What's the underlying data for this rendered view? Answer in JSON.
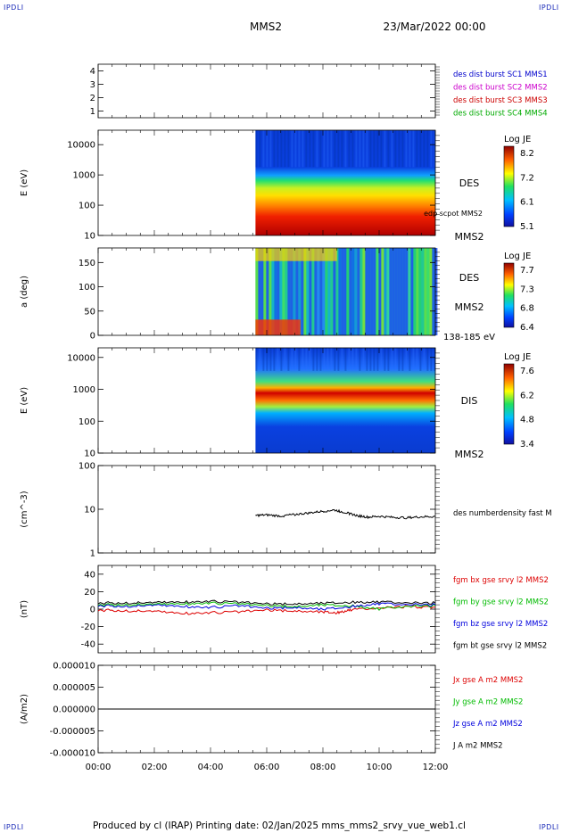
{
  "header": {
    "corner_tl": "IPDLI",
    "corner_tr": "IPDLI",
    "corner_bl": "IPDLI",
    "corner_br": "IPDLI",
    "spacecraft": "MMS2",
    "datetime": "23/Mar/2022 00:00"
  },
  "footer": {
    "credit": "Produced by cl (IRAP)   Printing date: 02/Jan/2025   mms_mms2_srvy_vue_web1.cl"
  },
  "colors": {
    "mms1": "#0000cc",
    "mms2": "#cc00cc",
    "mms3": "#cc0000",
    "mms4": "#00aa00",
    "bx": "#dd0000",
    "by": "#00bb00",
    "bz": "#0000dd",
    "bt": "#000000"
  },
  "chart_data": [
    {
      "type": "line",
      "panel": "burst-availability",
      "ylim": [
        0.5,
        4.5
      ],
      "yticks": [
        "1",
        "2",
        "3",
        "4"
      ],
      "legend": [
        {
          "label": "des dist burst SC1 MMS1",
          "color_key": "mms1"
        },
        {
          "label": "des dist burst SC2 MMS2",
          "color_key": "mms2"
        },
        {
          "label": "des dist burst SC3 MMS3",
          "color_key": "mms3"
        },
        {
          "label": "des dist burst SC4 MMS4",
          "color_key": "mms4"
        }
      ],
      "series": []
    },
    {
      "type": "heatmap",
      "panel": "des-energy",
      "ylabel": "E (eV)",
      "yscale": "log",
      "ylim": [
        10,
        30000
      ],
      "yticks": [
        "10",
        "100",
        "1000",
        "10000"
      ],
      "data_start_hour": 5.6,
      "right_labels": [
        "DES",
        "edp scpot MMS2",
        "MMS2"
      ],
      "colorbar": {
        "title": "Log JE",
        "ticks": [
          "8.2",
          "7.2",
          "6.1",
          "5.1"
        ]
      }
    },
    {
      "type": "heatmap",
      "panel": "des-pitch-angle",
      "ylabel": "a (deg)",
      "ylim": [
        0,
        180
      ],
      "yticks": [
        "0",
        "50",
        "100",
        "150"
      ],
      "data_start_hour": 5.6,
      "right_labels": [
        "DES",
        "MMS2",
        "138-185 eV"
      ],
      "colorbar": {
        "title": "Log JE",
        "ticks": [
          "7.7",
          "7.3",
          "6.8",
          "6.4"
        ]
      }
    },
    {
      "type": "heatmap",
      "panel": "dis-energy",
      "ylabel": "E (eV)",
      "yscale": "log",
      "ylim": [
        10,
        20000
      ],
      "yticks": [
        "10",
        "100",
        "1000",
        "10000"
      ],
      "data_start_hour": 5.6,
      "right_labels": [
        "DIS",
        "MMS2"
      ],
      "colorbar": {
        "title": "Log JE",
        "ticks": [
          "7.6",
          "6.2",
          "4.8",
          "3.4"
        ]
      }
    },
    {
      "type": "line",
      "panel": "density",
      "ylabel": "(cm^-3)",
      "yscale": "log",
      "ylim": [
        1,
        100
      ],
      "yticks": [
        "1",
        "10",
        "100"
      ],
      "legend": [
        {
          "label": "des numberdensity fast M",
          "color_key": "bt"
        }
      ],
      "series": [
        {
          "name": "des numberdensity fast M",
          "color_key": "bt",
          "x": [
            5.6,
            6.0,
            6.5,
            7.0,
            7.5,
            8.0,
            8.4,
            8.8,
            9.2,
            9.6,
            10.0,
            10.5,
            11.0,
            11.5,
            12.0
          ],
          "y": [
            7.2,
            7.4,
            7.0,
            7.6,
            8.2,
            9.0,
            9.6,
            8.4,
            7.2,
            6.6,
            6.9,
            6.5,
            6.4,
            6.7,
            6.8
          ]
        }
      ]
    },
    {
      "type": "line",
      "panel": "magnetic-field",
      "ylabel": "(nT)",
      "ylim": [
        -50,
        50
      ],
      "yticks": [
        "-40",
        "-20",
        "0",
        "20",
        "40"
      ],
      "legend": [
        {
          "label": "fgm bx gse srvy l2 MMS2",
          "color_key": "bx"
        },
        {
          "label": "fgm by gse srvy l2 MMS2",
          "color_key": "by"
        },
        {
          "label": "fgm bz gse srvy l2 MMS2",
          "color_key": "bz"
        },
        {
          "label": "fgm bt gse srvy l2 MMS2",
          "color_key": "bt"
        }
      ],
      "series": [
        {
          "name": "fgm bx gse srvy l2 MMS2",
          "color_key": "bx",
          "x": [
            0,
            1,
            2,
            3,
            4,
            5,
            6,
            7,
            8,
            8.5,
            9,
            10,
            11,
            12
          ],
          "y": [
            -1,
            -2,
            -2,
            -5,
            -4,
            -3,
            -1,
            -2,
            -3,
            -4,
            -1,
            1,
            3,
            2
          ]
        },
        {
          "name": "fgm by gse srvy l2 MMS2",
          "color_key": "by",
          "x": [
            0,
            1,
            2,
            3,
            4,
            5,
            6,
            7,
            8,
            9,
            10,
            11,
            12
          ],
          "y": [
            5,
            5,
            6,
            6,
            7,
            6,
            4,
            3,
            5,
            4,
            0,
            3,
            4
          ]
        },
        {
          "name": "fgm bz gse srvy l2 MMS2",
          "color_key": "bz",
          "x": [
            0,
            1,
            2,
            3,
            4,
            5,
            6,
            7,
            8,
            9,
            10,
            11,
            12
          ],
          "y": [
            4,
            3,
            5,
            3,
            2,
            4,
            1,
            2,
            0,
            3,
            6,
            5,
            5
          ]
        },
        {
          "name": "fgm bt gse srvy l2 MMS2",
          "color_key": "bt",
          "x": [
            0,
            1,
            2,
            3,
            4,
            5,
            6,
            7,
            8,
            9,
            10,
            11,
            12
          ],
          "y": [
            7,
            7,
            8,
            8,
            9,
            8,
            6,
            6,
            7,
            8,
            8,
            7,
            7
          ]
        }
      ]
    },
    {
      "type": "line",
      "panel": "current-density",
      "ylabel": "(A/m2)",
      "ylim": [
        -1e-05,
        1e-05
      ],
      "yticks": [
        "-0.000010",
        "-0.000005",
        "0.000000",
        "0.000005",
        "0.000010"
      ],
      "xlim": [
        0,
        12
      ],
      "xticks": [
        "00:00",
        "02:00",
        "04:00",
        "06:00",
        "08:00",
        "10:00",
        "12:00"
      ],
      "legend": [
        {
          "label": "Jx gse A m2 MMS2",
          "color_key": "bx"
        },
        {
          "label": "Jy gse A m2 MMS2",
          "color_key": "by"
        },
        {
          "label": "Jz gse A m2 MMS2",
          "color_key": "bz"
        },
        {
          "label": "J A m2 MMS2",
          "color_key": "bt"
        }
      ],
      "series": [
        {
          "name": "J A m2 MMS2",
          "color_key": "bt",
          "x": [
            0,
            12
          ],
          "y": [
            0,
            0
          ]
        }
      ]
    }
  ]
}
